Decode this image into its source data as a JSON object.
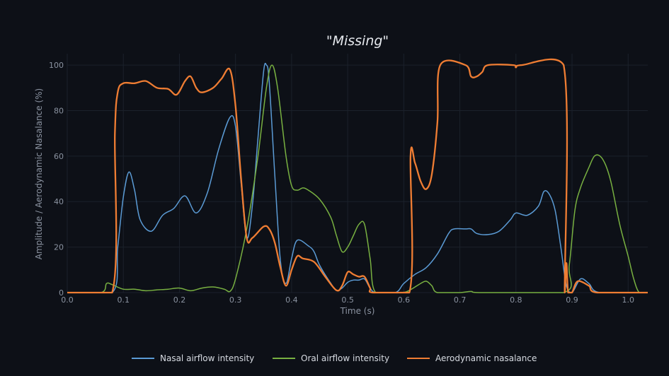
{
  "chart_data": {
    "type": "line",
    "title": "\"Missing\"",
    "xlabel": "Time (s)",
    "ylabel": "Amplitude / Aerodynamic Nasalance (%)",
    "xlim": [
      0.0,
      1.035
    ],
    "ylim": [
      0,
      105
    ],
    "xticks": [
      0.0,
      0.1,
      0.2,
      0.3,
      0.4,
      0.5,
      0.6,
      0.7,
      0.8,
      0.9,
      1.0
    ],
    "xtick_labels": [
      "0.0",
      "0.1",
      "0.2",
      "0.3",
      "0.4",
      "0.5",
      "0.6",
      "0.7",
      "0.8",
      "0.9",
      "1.0"
    ],
    "yticks": [
      0,
      20,
      40,
      60,
      80,
      100
    ],
    "ytick_labels": [
      "0",
      "20",
      "40",
      "60",
      "80",
      "100"
    ],
    "grid": true,
    "legend_position": "bottom-center",
    "series": [
      {
        "name": "Nasal airflow intensity",
        "color": "#5b9bd5",
        "points": [
          [
            0.0,
            0
          ],
          [
            0.08,
            0
          ],
          [
            0.09,
            20
          ],
          [
            0.1,
            42
          ],
          [
            0.11,
            53
          ],
          [
            0.12,
            45
          ],
          [
            0.13,
            32
          ],
          [
            0.15,
            27
          ],
          [
            0.17,
            34
          ],
          [
            0.19,
            37
          ],
          [
            0.21,
            42.5
          ],
          [
            0.23,
            35
          ],
          [
            0.25,
            44
          ],
          [
            0.27,
            63
          ],
          [
            0.29,
            77
          ],
          [
            0.3,
            73
          ],
          [
            0.31,
            48
          ],
          [
            0.32,
            24
          ],
          [
            0.33,
            38
          ],
          [
            0.34,
            68
          ],
          [
            0.35,
            97
          ],
          [
            0.355,
            100
          ],
          [
            0.36,
            93
          ],
          [
            0.37,
            52
          ],
          [
            0.38,
            14
          ],
          [
            0.39,
            4
          ],
          [
            0.4,
            15
          ],
          [
            0.41,
            23
          ],
          [
            0.43,
            20.5
          ],
          [
            0.44,
            18
          ],
          [
            0.45,
            12
          ],
          [
            0.47,
            4
          ],
          [
            0.48,
            1
          ],
          [
            0.49,
            2
          ],
          [
            0.5,
            4.5
          ],
          [
            0.51,
            5.5
          ],
          [
            0.52,
            5.5
          ],
          [
            0.53,
            6
          ],
          [
            0.54,
            2
          ],
          [
            0.55,
            0
          ],
          [
            0.585,
            0
          ],
          [
            0.6,
            4
          ],
          [
            0.62,
            8
          ],
          [
            0.64,
            11
          ],
          [
            0.66,
            17
          ],
          [
            0.68,
            26
          ],
          [
            0.69,
            28
          ],
          [
            0.71,
            28
          ],
          [
            0.72,
            28
          ],
          [
            0.73,
            26
          ],
          [
            0.75,
            25.5
          ],
          [
            0.77,
            27
          ],
          [
            0.79,
            32
          ],
          [
            0.8,
            35
          ],
          [
            0.82,
            34
          ],
          [
            0.84,
            38
          ],
          [
            0.85,
            44.5
          ],
          [
            0.86,
            43
          ],
          [
            0.87,
            36
          ],
          [
            0.88,
            20
          ],
          [
            0.89,
            3
          ],
          [
            0.9,
            0
          ],
          [
            0.915,
            6
          ],
          [
            0.93,
            4
          ],
          [
            0.95,
            0
          ],
          [
            1.035,
            0
          ]
        ]
      },
      {
        "name": "Oral airflow intensity",
        "color": "#78b041",
        "points": [
          [
            0.0,
            0
          ],
          [
            0.06,
            0
          ],
          [
            0.07,
            4
          ],
          [
            0.08,
            3.5
          ],
          [
            0.1,
            1.5
          ],
          [
            0.12,
            1.5
          ],
          [
            0.14,
            0.8
          ],
          [
            0.16,
            1.2
          ],
          [
            0.18,
            1.5
          ],
          [
            0.2,
            2
          ],
          [
            0.22,
            0.8
          ],
          [
            0.24,
            2
          ],
          [
            0.26,
            2.5
          ],
          [
            0.28,
            1.5
          ],
          [
            0.29,
            0.5
          ],
          [
            0.3,
            6
          ],
          [
            0.32,
            28
          ],
          [
            0.34,
            60
          ],
          [
            0.355,
            90
          ],
          [
            0.365,
            100
          ],
          [
            0.375,
            90
          ],
          [
            0.39,
            60
          ],
          [
            0.4,
            47
          ],
          [
            0.41,
            45
          ],
          [
            0.42,
            46
          ],
          [
            0.43,
            45
          ],
          [
            0.45,
            41
          ],
          [
            0.47,
            33
          ],
          [
            0.48,
            25
          ],
          [
            0.49,
            18
          ],
          [
            0.5,
            20
          ],
          [
            0.51,
            25
          ],
          [
            0.52,
            30
          ],
          [
            0.53,
            30
          ],
          [
            0.54,
            15
          ],
          [
            0.55,
            0
          ],
          [
            0.595,
            0
          ],
          [
            0.61,
            1
          ],
          [
            0.63,
            4
          ],
          [
            0.64,
            5
          ],
          [
            0.65,
            3
          ],
          [
            0.66,
            0
          ],
          [
            0.7,
            0
          ],
          [
            0.72,
            0.5
          ],
          [
            0.74,
            0
          ],
          [
            0.885,
            0
          ],
          [
            0.895,
            12
          ],
          [
            0.905,
            36
          ],
          [
            0.915,
            46
          ],
          [
            0.93,
            55
          ],
          [
            0.94,
            60
          ],
          [
            0.95,
            60
          ],
          [
            0.96,
            56
          ],
          [
            0.97,
            48
          ],
          [
            0.985,
            30
          ],
          [
            1.0,
            16
          ],
          [
            1.01,
            6
          ],
          [
            1.02,
            0
          ],
          [
            1.035,
            0
          ]
        ]
      },
      {
        "name": "Aerodynamic nasalance",
        "color": "#ef7d33",
        "points": [
          [
            0.0,
            0
          ],
          [
            0.08,
            0
          ],
          [
            0.085,
            70
          ],
          [
            0.09,
            88
          ],
          [
            0.1,
            92
          ],
          [
            0.12,
            92
          ],
          [
            0.14,
            93
          ],
          [
            0.16,
            90
          ],
          [
            0.18,
            89.5
          ],
          [
            0.195,
            87
          ],
          [
            0.21,
            93
          ],
          [
            0.22,
            95
          ],
          [
            0.23,
            90
          ],
          [
            0.24,
            88
          ],
          [
            0.26,
            90
          ],
          [
            0.275,
            94
          ],
          [
            0.29,
            98
          ],
          [
            0.3,
            82
          ],
          [
            0.31,
            50
          ],
          [
            0.32,
            24
          ],
          [
            0.33,
            24
          ],
          [
            0.35,
            29
          ],
          [
            0.36,
            28
          ],
          [
            0.37,
            22
          ],
          [
            0.38,
            11
          ],
          [
            0.39,
            3
          ],
          [
            0.4,
            10
          ],
          [
            0.41,
            16
          ],
          [
            0.42,
            15
          ],
          [
            0.44,
            13.5
          ],
          [
            0.46,
            7
          ],
          [
            0.48,
            1
          ],
          [
            0.49,
            3
          ],
          [
            0.5,
            9
          ],
          [
            0.51,
            8
          ],
          [
            0.52,
            7
          ],
          [
            0.53,
            7
          ],
          [
            0.54,
            2
          ],
          [
            0.545,
            0
          ],
          [
            0.61,
            0
          ],
          [
            0.612,
            60
          ],
          [
            0.62,
            57
          ],
          [
            0.63,
            49
          ],
          [
            0.64,
            45.5
          ],
          [
            0.65,
            52
          ],
          [
            0.66,
            75
          ],
          [
            0.665,
            100
          ],
          [
            0.71,
            100
          ],
          [
            0.72,
            95
          ],
          [
            0.73,
            95
          ],
          [
            0.74,
            97
          ],
          [
            0.75,
            100
          ],
          [
            0.795,
            100
          ],
          [
            0.8,
            99
          ],
          [
            0.81,
            100
          ],
          [
            0.885,
            100
          ],
          [
            0.887,
            0
          ],
          [
            0.89,
            13
          ],
          [
            0.893,
            0
          ],
          [
            0.9,
            0
          ],
          [
            0.91,
            5
          ],
          [
            0.93,
            3
          ],
          [
            0.945,
            0
          ],
          [
            1.035,
            0
          ]
        ]
      }
    ]
  }
}
